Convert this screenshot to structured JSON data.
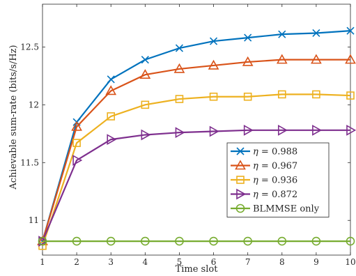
{
  "chart_data": {
    "type": "line",
    "xlabel": "Time slot",
    "ylabel": "Achievable sum-rate (bits/s/Hz)",
    "x": [
      1,
      2,
      3,
      4,
      5,
      6,
      7,
      8,
      9,
      10
    ],
    "xlim": [
      1,
      10
    ],
    "ylim": [
      10.7,
      12.87
    ],
    "xticks": [
      "1",
      "2",
      "3",
      "4",
      "5",
      "6",
      "7",
      "8",
      "9",
      "10"
    ],
    "yticks": [
      {
        "value": 11,
        "label": "11"
      },
      {
        "value": 11.5,
        "label": "11.5"
      },
      {
        "value": 12,
        "label": "12"
      },
      {
        "value": 12.5,
        "label": "12.5"
      }
    ],
    "grid": false,
    "legend_position": "lower-right",
    "series": [
      {
        "name": "η = 0.988",
        "symbol": "η",
        "value_text": "= 0.988",
        "marker": "x",
        "color": "#0072BD",
        "values": [
          10.82,
          11.85,
          12.22,
          12.39,
          12.49,
          12.55,
          12.58,
          12.61,
          12.62,
          12.64
        ]
      },
      {
        "name": "η = 0.967",
        "symbol": "η",
        "value_text": "= 0.967",
        "marker": "triangle",
        "color": "#D95319",
        "values": [
          10.82,
          11.81,
          12.12,
          12.26,
          12.31,
          12.34,
          12.37,
          12.39,
          12.39,
          12.39
        ]
      },
      {
        "name": "η = 0.936",
        "symbol": "η",
        "value_text": "= 0.936",
        "marker": "square",
        "color": "#EDB120",
        "values": [
          10.78,
          11.67,
          11.9,
          12.0,
          12.05,
          12.07,
          12.07,
          12.09,
          12.09,
          12.08
        ]
      },
      {
        "name": "η = 0.872",
        "symbol": "η",
        "value_text": "= 0.872",
        "marker": "triangle-right",
        "color": "#7E2F8E",
        "values": [
          10.82,
          11.52,
          11.7,
          11.74,
          11.76,
          11.77,
          11.78,
          11.78,
          11.78,
          11.78
        ]
      },
      {
        "name": "BLMMSE only",
        "symbol": "",
        "value_text": "BLMMSE only",
        "marker": "circle",
        "color": "#77AC30",
        "values": [
          10.82,
          10.82,
          10.82,
          10.82,
          10.82,
          10.82,
          10.82,
          10.82,
          10.82,
          10.82
        ]
      }
    ]
  }
}
